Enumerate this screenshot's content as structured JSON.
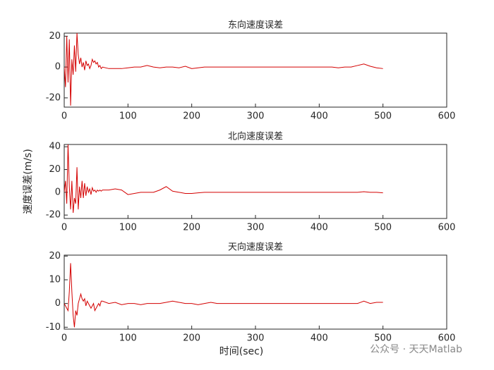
{
  "chart_data": [
    {
      "type": "line",
      "title": "东向速度误差",
      "x": [
        0,
        2,
        4,
        6,
        8,
        10,
        12,
        14,
        16,
        18,
        20,
        22,
        24,
        26,
        28,
        30,
        32,
        34,
        36,
        38,
        40,
        42,
        44,
        46,
        48,
        50,
        52,
        54,
        56,
        58,
        60,
        70,
        80,
        90,
        100,
        110,
        120,
        130,
        140,
        150,
        160,
        170,
        180,
        190,
        200,
        210,
        220,
        230,
        240,
        250,
        260,
        270,
        280,
        290,
        300,
        310,
        320,
        330,
        340,
        350,
        360,
        370,
        380,
        390,
        400,
        410,
        420,
        430,
        440,
        450,
        460,
        470,
        480,
        490,
        500
      ],
      "values": [
        0,
        -13,
        20,
        -10,
        18,
        -25,
        5,
        -5,
        14,
        -3,
        22,
        8,
        2,
        6,
        0,
        3,
        -2,
        4,
        1,
        2,
        -1,
        1,
        5,
        3,
        4,
        2,
        3,
        0,
        1,
        -1,
        0,
        -1,
        -1,
        -1,
        -0.5,
        0,
        0,
        1,
        0,
        -0.5,
        0,
        0,
        -0.5,
        0.5,
        -1,
        -0.5,
        0,
        0,
        0,
        0,
        0,
        0,
        0,
        0,
        0,
        0,
        0,
        0,
        0,
        0,
        0,
        0,
        0,
        0,
        0,
        0,
        0,
        -0.5,
        0,
        0,
        1,
        2,
        0.5,
        -0.5,
        -1
      ],
      "color": "#d40000",
      "xlim": [
        0,
        600
      ],
      "xticks": [
        0,
        100,
        200,
        300,
        400,
        500,
        600
      ],
      "ylim": [
        -26,
        22
      ],
      "yticks": [
        -20,
        0,
        20
      ]
    },
    {
      "type": "line",
      "title": "北向速度误差",
      "ylabel": "速度误差(m/s)",
      "x": [
        0,
        2,
        4,
        6,
        8,
        10,
        12,
        14,
        16,
        18,
        20,
        22,
        24,
        26,
        28,
        30,
        32,
        34,
        36,
        38,
        40,
        42,
        44,
        46,
        48,
        50,
        52,
        54,
        56,
        58,
        60,
        70,
        80,
        90,
        100,
        110,
        120,
        130,
        140,
        150,
        160,
        170,
        180,
        190,
        200,
        210,
        220,
        230,
        240,
        250,
        260,
        270,
        280,
        290,
        300,
        310,
        320,
        330,
        340,
        350,
        360,
        370,
        380,
        390,
        400,
        410,
        420,
        430,
        440,
        450,
        460,
        470,
        480,
        490,
        500
      ],
      "values": [
        0,
        10,
        -10,
        42,
        5,
        -15,
        10,
        -18,
        -5,
        -10,
        22,
        -15,
        5,
        -5,
        10,
        -5,
        8,
        -3,
        5,
        0,
        3,
        -2,
        4,
        1,
        2,
        0,
        2,
        1,
        2,
        1,
        2,
        2,
        3,
        2,
        -2,
        -1,
        0,
        0,
        0,
        2,
        5,
        1,
        0,
        -1,
        -1,
        -0.5,
        0,
        0,
        0,
        0,
        0,
        0,
        0,
        0,
        0,
        0,
        0,
        0,
        0,
        0,
        0,
        0,
        0,
        0,
        0,
        0,
        0,
        0,
        0,
        0,
        0,
        0.5,
        0,
        0,
        -0.5
      ],
      "color": "#d40000",
      "xlim": [
        0,
        600
      ],
      "xticks": [
        0,
        100,
        200,
        300,
        400,
        500,
        600
      ],
      "ylim": [
        -23,
        42
      ],
      "yticks": [
        -20,
        0,
        20,
        40
      ]
    },
    {
      "type": "line",
      "title": "天向速度误差",
      "xlabel": "时间(sec)",
      "x": [
        0,
        2,
        4,
        6,
        8,
        10,
        12,
        14,
        16,
        18,
        20,
        22,
        24,
        26,
        28,
        30,
        32,
        34,
        36,
        38,
        40,
        42,
        44,
        46,
        48,
        50,
        52,
        54,
        56,
        58,
        60,
        70,
        80,
        90,
        100,
        110,
        120,
        130,
        140,
        150,
        160,
        170,
        180,
        190,
        200,
        210,
        220,
        230,
        240,
        250,
        260,
        270,
        280,
        290,
        300,
        310,
        320,
        330,
        340,
        350,
        360,
        370,
        380,
        390,
        400,
        410,
        420,
        430,
        440,
        450,
        460,
        470,
        480,
        490,
        500
      ],
      "values": [
        0,
        -1,
        -2,
        -3,
        5,
        17,
        5,
        -5,
        -10,
        -3,
        -5,
        0,
        2,
        4,
        2,
        1,
        2,
        -1,
        1,
        0,
        -1,
        -2,
        -1,
        0,
        -3,
        -2,
        -1,
        0,
        -1,
        1,
        1,
        0,
        0.5,
        -0.5,
        0,
        0,
        -0.5,
        0,
        0,
        0,
        0.5,
        1,
        0.5,
        0,
        0,
        -0.5,
        0,
        0.5,
        0,
        0,
        0,
        0,
        0,
        0,
        0,
        0,
        0,
        0,
        0,
        0,
        0,
        0,
        0,
        0,
        0,
        0,
        0,
        0,
        0,
        0,
        0,
        1,
        0,
        0.5,
        0.5
      ],
      "color": "#d40000",
      "xlim": [
        0,
        600
      ],
      "xticks": [
        0,
        100,
        200,
        300,
        400,
        500,
        600
      ],
      "ylim": [
        -10.8,
        20.4
      ],
      "yticks": [
        -10,
        0,
        10,
        20
      ]
    }
  ],
  "watermark": "公众号 · 天天Matlab"
}
